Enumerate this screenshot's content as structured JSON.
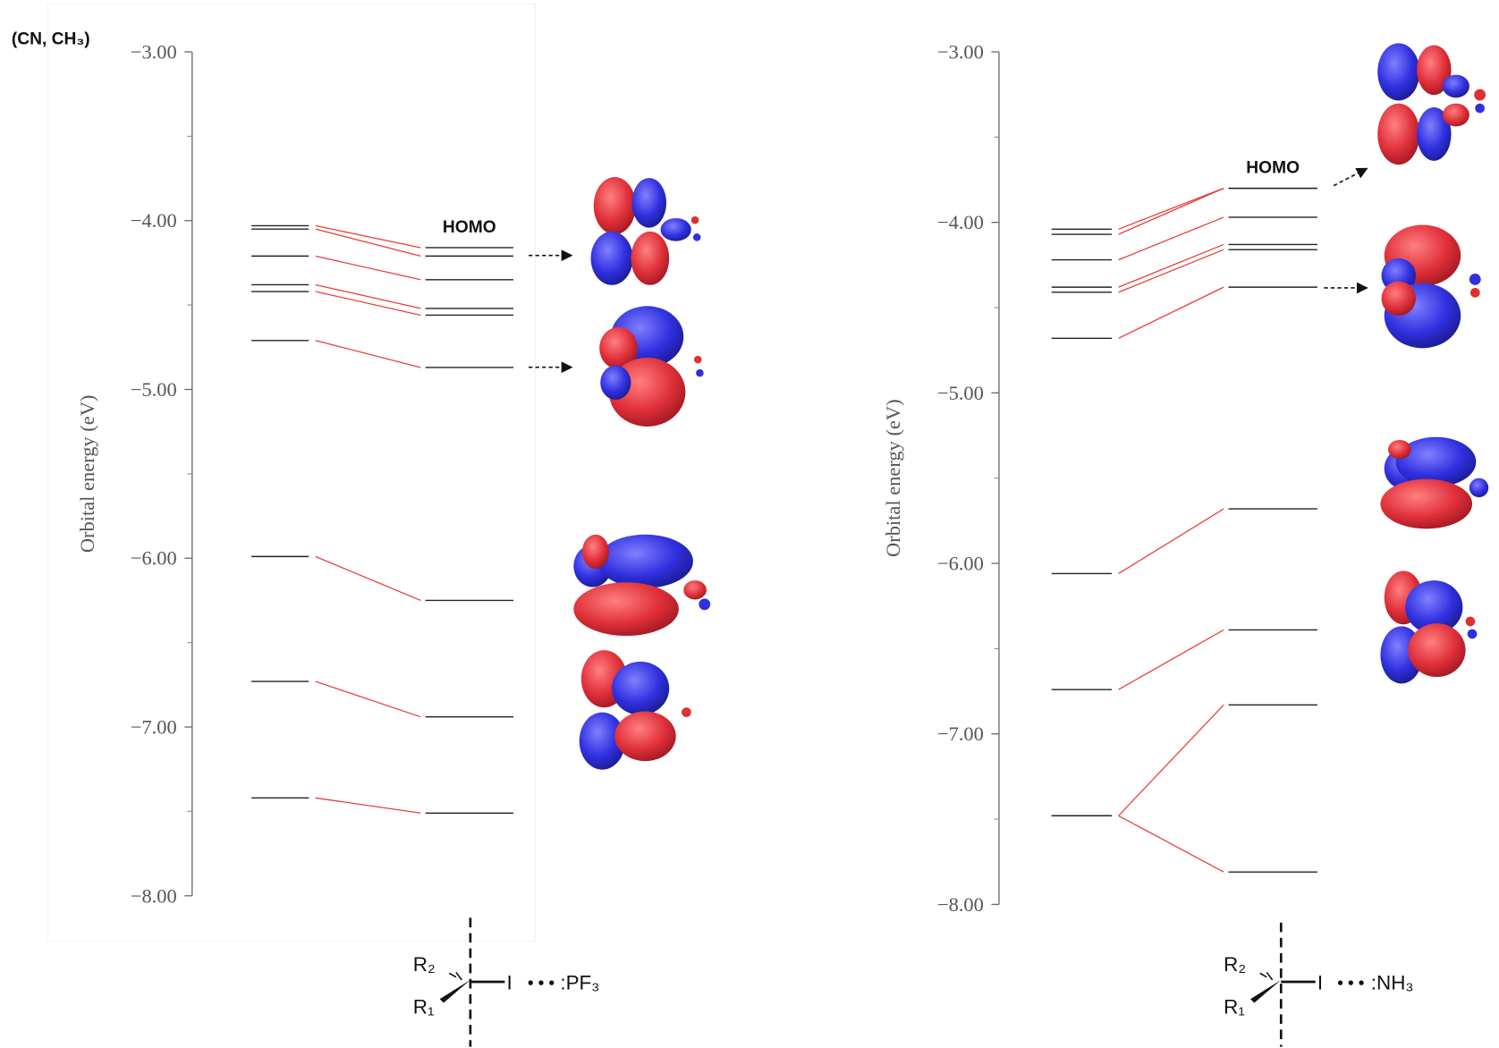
{
  "chart_data": [
    {
      "type": "energy-level",
      "annotation": "(CN, CH₃)",
      "ylabel": "Orbital energy (eV)",
      "ylim": [
        -8,
        -3
      ],
      "yticks": [
        {
          "value": -3,
          "label": "−3.00"
        },
        {
          "value": -4,
          "label": "−4.00"
        },
        {
          "value": -5,
          "label": "−5.00"
        },
        {
          "value": -6,
          "label": "−6.00"
        },
        {
          "value": -7,
          "label": "−7.00"
        },
        {
          "value": -8,
          "label": "−8.00"
        }
      ],
      "series": [
        {
          "color": "#222222",
          "values": [
            -4.03,
            -4.05,
            -4.21,
            -4.38,
            -4.42,
            -4.71,
            -5.99,
            -6.73,
            -7.42
          ]
        },
        {
          "color": "#222222",
          "values": [
            -4.16,
            -4.21,
            -4.35,
            -4.52,
            -4.56,
            -4.87,
            -6.25,
            -6.94,
            -7.51
          ]
        }
      ],
      "connector_color": "#e8403a",
      "homo_label": "HOMO",
      "molecule": {
        "r2": "R₂",
        "r1": "R₁",
        "atom": "I",
        "ligand": ":PF₃"
      }
    },
    {
      "type": "energy-level",
      "ylabel": "Orbital energy (eV)",
      "ylim": [
        -8,
        -3
      ],
      "yticks": [
        {
          "value": -3,
          "label": "−3.00"
        },
        {
          "value": -4,
          "label": "−4.00"
        },
        {
          "value": -5,
          "label": "−5.00"
        },
        {
          "value": -6,
          "label": "−6.00"
        },
        {
          "value": -7,
          "label": "−7.00"
        },
        {
          "value": -8,
          "label": "−8.00"
        }
      ],
      "series": [
        {
          "color": "#222222",
          "values": [
            -4.04,
            -4.07,
            -4.22,
            -4.38,
            -4.41,
            -4.68,
            -6.06,
            -6.74,
            -7.48,
            -7.48
          ]
        },
        {
          "color": "#222222",
          "values": [
            -3.8,
            -3.8,
            -3.97,
            -4.13,
            -4.16,
            -4.38,
            -5.68,
            -6.39,
            -6.83,
            -7.81
          ]
        }
      ],
      "connector_color": "#e8403a",
      "homo_label": "HOMO",
      "molecule": {
        "r2": "R₂",
        "r1": "R₁",
        "atom": "I",
        "ligand": ":NH₃"
      }
    }
  ]
}
